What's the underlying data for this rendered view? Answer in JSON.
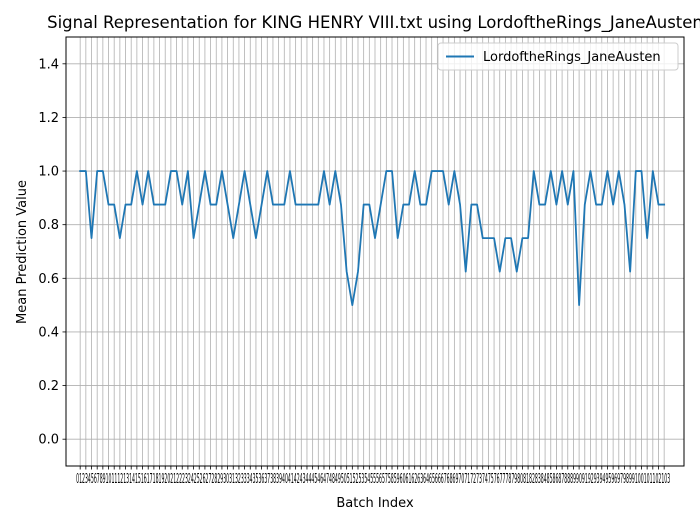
{
  "chart_data": {
    "type": "line",
    "title": "Signal Representation for KING HENRY VIII.txt using LordoftheRings_JaneAusten",
    "xlabel": "Batch Index",
    "ylabel": "Mean Prediction Value",
    "xlim": [
      -2.5,
      106.5
    ],
    "ylim": [
      -0.1,
      1.5
    ],
    "yticks": [
      0.0,
      0.2,
      0.4,
      0.6,
      0.8,
      1.0,
      1.2,
      1.4
    ],
    "ytick_labels": [
      "0.0",
      "0.2",
      "0.4",
      "0.6",
      "0.8",
      "1.0",
      "1.2",
      "1.4"
    ],
    "xticks_step": 1,
    "xtick_labels_rendered": "0123456789101112131415161718192021222324252627282930313233343536373839404142434445464748495051525354555657585960616263646566676869707172737475767778798081828384858687888990919293949596979899100101102103",
    "grid": true,
    "legend_position": "top-right",
    "series": [
      {
        "name": "LordoftheRings_JaneAusten",
        "color": "#1f77b4",
        "x": [
          0,
          1,
          2,
          3,
          4,
          5,
          6,
          7,
          8,
          9,
          10,
          11,
          12,
          13,
          14,
          15,
          16,
          17,
          18,
          19,
          20,
          21,
          22,
          23,
          24,
          25,
          26,
          27,
          28,
          29,
          30,
          31,
          32,
          33,
          34,
          35,
          36,
          37,
          38,
          39,
          40,
          41,
          42,
          43,
          44,
          45,
          46,
          47,
          48,
          49,
          50,
          51,
          52,
          53,
          54,
          55,
          56,
          57,
          58,
          59,
          60,
          61,
          62,
          63,
          64,
          65,
          66,
          67,
          68,
          69,
          70,
          71,
          72,
          73,
          74,
          75,
          76,
          77,
          78,
          79,
          80,
          81,
          82,
          83,
          84,
          85,
          86,
          87,
          88,
          89,
          90,
          91,
          92,
          93,
          94,
          95,
          96,
          97,
          98,
          99,
          100,
          101,
          102,
          103
        ],
        "y": [
          1.0,
          1.0,
          0.75,
          1.0,
          1.0,
          0.875,
          0.875,
          0.75,
          0.875,
          0.875,
          1.0,
          0.875,
          1.0,
          0.875,
          0.875,
          0.875,
          1.0,
          1.0,
          0.875,
          1.0,
          0.75,
          0.875,
          1.0,
          0.875,
          0.875,
          1.0,
          0.875,
          0.75,
          0.875,
          1.0,
          0.875,
          0.75,
          0.875,
          1.0,
          0.875,
          0.875,
          0.875,
          1.0,
          0.875,
          0.875,
          0.875,
          0.875,
          0.875,
          1.0,
          0.875,
          1.0,
          0.875,
          0.625,
          0.5,
          0.625,
          0.875,
          0.875,
          0.75,
          0.875,
          1.0,
          1.0,
          0.75,
          0.875,
          0.875,
          1.0,
          0.875,
          0.875,
          1.0,
          1.0,
          1.0,
          0.875,
          1.0,
          0.875,
          0.625,
          0.875,
          0.875,
          0.75,
          0.75,
          0.75,
          0.625,
          0.75,
          0.75,
          0.625,
          0.75,
          0.75,
          1.0,
          0.875,
          0.875,
          1.0,
          0.875,
          1.0,
          0.875,
          1.0,
          0.5,
          0.875,
          1.0,
          0.875,
          0.875,
          1.0,
          0.875,
          1.0,
          0.875,
          0.625,
          1.0,
          1.0,
          0.75,
          1.0,
          0.875,
          0.875
        ]
      }
    ]
  }
}
